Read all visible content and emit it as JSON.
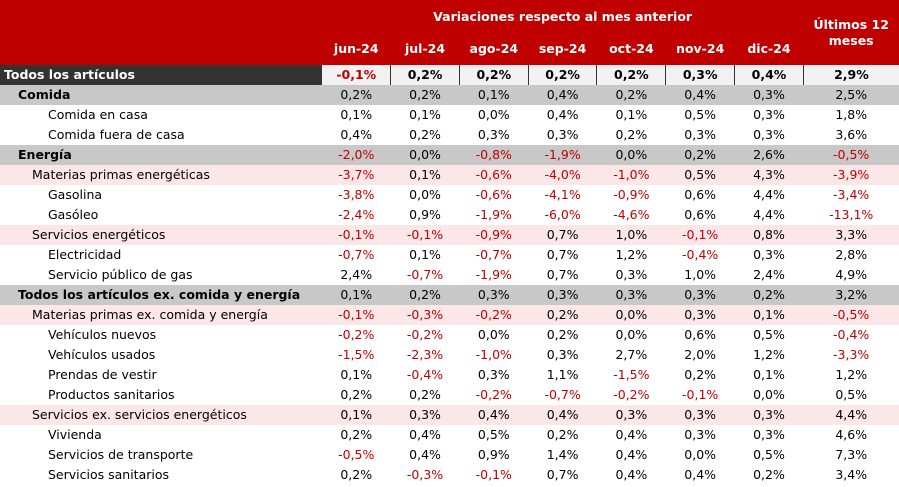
{
  "header": {
    "group_title": "Variaciones respecto al mes anterior",
    "last12_title": "Últimos 12 meses",
    "months": [
      "jun-24",
      "jul-24",
      "ago-24",
      "sep-24",
      "oct-24",
      "nov-24",
      "dic-24"
    ]
  },
  "rows": [
    {
      "label": "Todos los artículos",
      "level": 0,
      "values": [
        "-0,1%",
        "0,2%",
        "0,2%",
        "0,2%",
        "0,2%",
        "0,3%",
        "0,4%"
      ],
      "last12": "2,9%"
    },
    {
      "label": "Comida",
      "level": 1,
      "values": [
        "0,2%",
        "0,2%",
        "0,1%",
        "0,4%",
        "0,2%",
        "0,4%",
        "0,3%"
      ],
      "last12": "2,5%"
    },
    {
      "label": "Comida en casa",
      "level": 3,
      "values": [
        "0,1%",
        "0,1%",
        "0,0%",
        "0,4%",
        "0,1%",
        "0,5%",
        "0,3%"
      ],
      "last12": "1,8%"
    },
    {
      "label": "Comida fuera de casa",
      "level": 3,
      "values": [
        "0,4%",
        "0,2%",
        "0,3%",
        "0,3%",
        "0,2%",
        "0,3%",
        "0,3%"
      ],
      "last12": "3,6%"
    },
    {
      "label": "Energía",
      "level": 1,
      "values": [
        "-2,0%",
        "0,0%",
        "-0,8%",
        "-1,9%",
        "0,0%",
        "0,2%",
        "2,6%"
      ],
      "last12": "-0,5%"
    },
    {
      "label": "Materias primas energéticas",
      "level": 2,
      "values": [
        "-3,7%",
        "0,1%",
        "-0,6%",
        "-4,0%",
        "-1,0%",
        "0,5%",
        "4,3%"
      ],
      "last12": "-3,9%"
    },
    {
      "label": "Gasolina",
      "level": 3,
      "values": [
        "-3,8%",
        "0,0%",
        "-0,6%",
        "-4,1%",
        "-0,9%",
        "0,6%",
        "4,4%"
      ],
      "last12": "-3,4%"
    },
    {
      "label": "Gasóleo",
      "level": 3,
      "values": [
        "-2,4%",
        "0,9%",
        "-1,9%",
        "-6,0%",
        "-4,6%",
        "0,6%",
        "4,4%"
      ],
      "last12": "-13,1%"
    },
    {
      "label": "Servicios energéticos",
      "level": 2,
      "values": [
        "-0,1%",
        "-0,1%",
        "-0,9%",
        "0,7%",
        "1,0%",
        "-0,1%",
        "0,8%"
      ],
      "last12": "3,3%"
    },
    {
      "label": "Electricidad",
      "level": 3,
      "values": [
        "-0,7%",
        "0,1%",
        "-0,7%",
        "0,7%",
        "1,2%",
        "-0,4%",
        "0,3%"
      ],
      "last12": "2,8%"
    },
    {
      "label": "Servicio público de gas",
      "level": 3,
      "values": [
        "2,4%",
        "-0,7%",
        "-1,9%",
        "0,7%",
        "0,3%",
        "1,0%",
        "2,4%"
      ],
      "last12": "4,9%"
    },
    {
      "label": "Todos los artículos ex. comida y energía",
      "level": 1,
      "values": [
        "0,1%",
        "0,2%",
        "0,3%",
        "0,3%",
        "0,3%",
        "0,3%",
        "0,2%"
      ],
      "last12": "3,2%"
    },
    {
      "label": "Materias primas ex. comida y energía",
      "level": 2,
      "values": [
        "-0,1%",
        "-0,3%",
        "-0,2%",
        "0,2%",
        "0,0%",
        "0,3%",
        "0,1%"
      ],
      "last12": "-0,5%"
    },
    {
      "label": "Vehículos nuevos",
      "level": 3,
      "values": [
        "-0,2%",
        "-0,2%",
        "0,0%",
        "0,2%",
        "0,0%",
        "0,6%",
        "0,5%"
      ],
      "last12": "-0,4%"
    },
    {
      "label": "Vehículos usados",
      "level": 3,
      "values": [
        "-1,5%",
        "-2,3%",
        "-1,0%",
        "0,3%",
        "2,7%",
        "2,0%",
        "1,2%"
      ],
      "last12": "-3,3%"
    },
    {
      "label": "Prendas de vestir",
      "level": 3,
      "values": [
        "0,1%",
        "-0,4%",
        "0,3%",
        "1,1%",
        "-1,5%",
        "0,2%",
        "0,1%"
      ],
      "last12": "1,2%"
    },
    {
      "label": "Productos sanitarios",
      "level": 3,
      "values": [
        "0,2%",
        "0,2%",
        "-0,2%",
        "-0,7%",
        "-0,2%",
        "-0,1%",
        "0,0%"
      ],
      "last12": "0,5%"
    },
    {
      "label": "Servicios ex. servicios energéticos",
      "level": 2,
      "values": [
        "0,1%",
        "0,3%",
        "0,4%",
        "0,4%",
        "0,3%",
        "0,3%",
        "0,3%"
      ],
      "last12": "4,4%"
    },
    {
      "label": "Vivienda",
      "level": 3,
      "values": [
        "0,2%",
        "0,4%",
        "0,5%",
        "0,2%",
        "0,4%",
        "0,3%",
        "0,3%"
      ],
      "last12": "4,6%"
    },
    {
      "label": "Servicios de transporte",
      "level": 3,
      "values": [
        "-0,5%",
        "0,4%",
        "0,9%",
        "1,4%",
        "0,4%",
        "0,0%",
        "0,5%"
      ],
      "last12": "7,3%"
    },
    {
      "label": "Servicios sanitarios",
      "level": 3,
      "values": [
        "0,2%",
        "-0,3%",
        "-0,1%",
        "0,7%",
        "0,4%",
        "0,4%",
        "0,2%"
      ],
      "last12": "3,4%"
    }
  ],
  "colors": {
    "header_bg": "#c00000",
    "negative_text": "#c00000",
    "total_row_bg": "#333333",
    "category_row_bg": "#c8c8c8",
    "subcategory_row_bg": "#fbe6e8"
  }
}
